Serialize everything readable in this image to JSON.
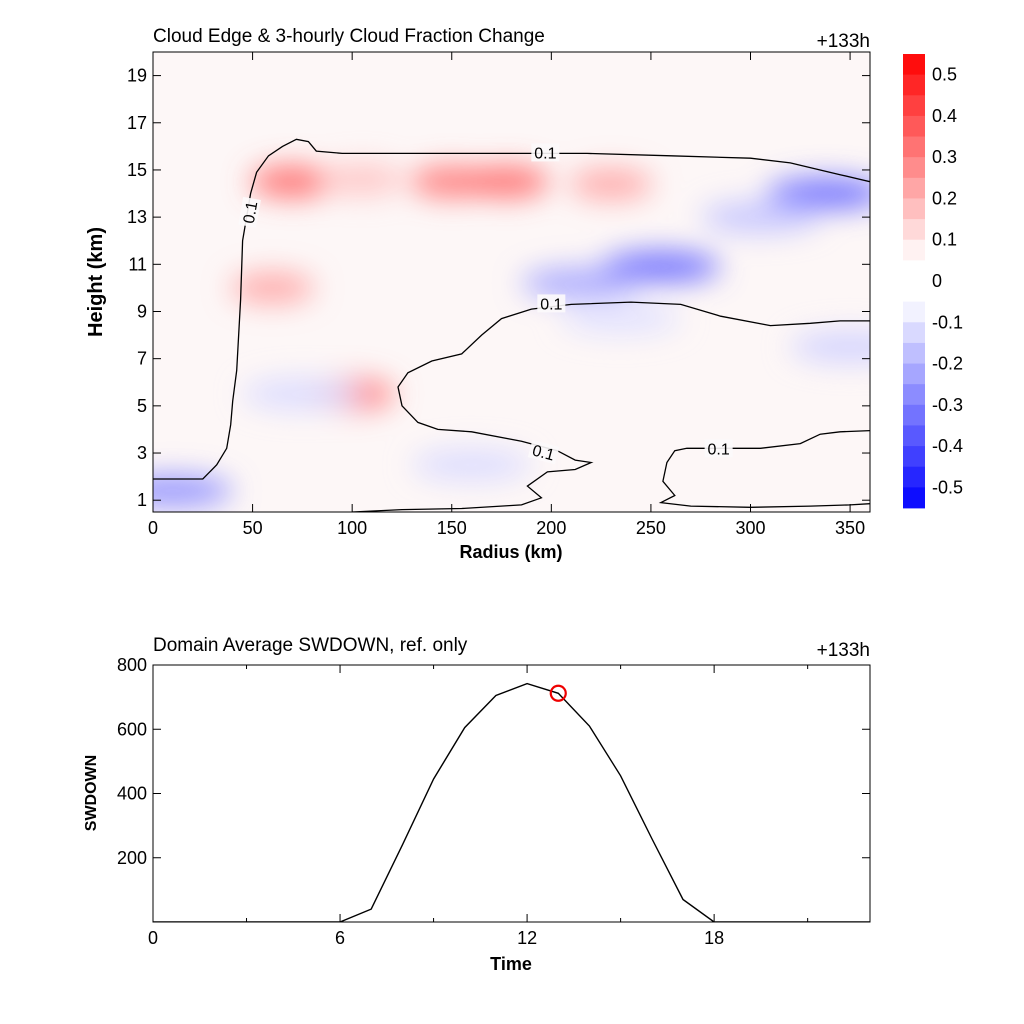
{
  "chart_data": [
    {
      "type": "heatmap",
      "title": "Cloud Edge & 3-hourly Cloud Fraction Change",
      "time_label": "+133h",
      "xlabel": "Radius (km)",
      "ylabel": "Height (km)",
      "xlim": [
        0,
        360
      ],
      "ylim": [
        0.5,
        20
      ],
      "x_ticks": [
        "0",
        "50",
        "100",
        "150",
        "200",
        "250",
        "300",
        "350"
      ],
      "x_tick_values": [
        0,
        50,
        100,
        150,
        200,
        250,
        300,
        350
      ],
      "y_ticks": [
        "1",
        "3",
        "5",
        "7",
        "9",
        "11",
        "13",
        "15",
        "17",
        "19"
      ],
      "y_tick_values": [
        1,
        3,
        5,
        7,
        9,
        11,
        13,
        15,
        17,
        19
      ],
      "colorbar": {
        "labels": [
          "0.5",
          "0.4",
          "0.3",
          "0.2",
          "0.1",
          "0",
          "-0.1",
          "-0.2",
          "-0.3",
          "-0.4",
          "-0.5"
        ],
        "range": [
          -0.55,
          0.55
        ],
        "positive_color": "#ff0000",
        "negative_color": "#0000ff"
      },
      "contour_level_label": "0.1",
      "anomalies": [
        {
          "x": 70,
          "y": 14.5,
          "value": 0.2
        },
        {
          "x": 105,
          "y": 14.6,
          "value": 0.08
        },
        {
          "x": 150,
          "y": 14.5,
          "value": 0.18
        },
        {
          "x": 178,
          "y": 14.5,
          "value": 0.2
        },
        {
          "x": 230,
          "y": 14.4,
          "value": 0.12
        },
        {
          "x": 60,
          "y": 10,
          "value": 0.12
        },
        {
          "x": 100,
          "y": 5.5,
          "value": 0.18
        },
        {
          "x": 255,
          "y": 10.9,
          "value": -0.2
        },
        {
          "x": 215,
          "y": 10.2,
          "value": -0.12
        },
        {
          "x": 338,
          "y": 14,
          "value": -0.2
        },
        {
          "x": 305,
          "y": 13,
          "value": -0.08
        },
        {
          "x": 10,
          "y": 1.4,
          "value": -0.15
        },
        {
          "x": 75,
          "y": 5.5,
          "value": -0.05
        },
        {
          "x": 160,
          "y": 2.5,
          "value": -0.05
        },
        {
          "x": 235,
          "y": 8.7,
          "value": -0.04
        },
        {
          "x": 350,
          "y": 7.5,
          "value": -0.06
        }
      ],
      "contour_0_1": [
        {
          "label_at": [
            250,
            13.3
          ],
          "points": [
            [
              0,
              1.9
            ],
            [
              25,
              1.9
            ],
            [
              32,
              2.5
            ],
            [
              37,
              3.2
            ],
            [
              39,
              4.2
            ],
            [
              40,
              5.2
            ],
            [
              42,
              6.5
            ],
            [
              44,
              9.5
            ],
            [
              45,
              12
            ],
            [
              49,
              14
            ],
            [
              52,
              14.9
            ],
            [
              58,
              15.6
            ],
            [
              65,
              16
            ],
            [
              72,
              16.3
            ],
            [
              78,
              16.2
            ],
            [
              82,
              15.8
            ],
            [
              95,
              15.7
            ],
            [
              130,
              15.7
            ],
            [
              170,
              15.7
            ],
            [
              218,
              15.7
            ],
            [
              260,
              15.6
            ],
            [
              300,
              15.5
            ],
            [
              320,
              15.3
            ],
            [
              345,
              14.8
            ],
            [
              360,
              14.5
            ]
          ]
        },
        {
          "points": [
            [
              360,
              8.6
            ],
            [
              345,
              8.6
            ],
            [
              330,
              8.5
            ],
            [
              310,
              8.4
            ],
            [
              285,
              8.8
            ],
            [
              265,
              9.3
            ],
            [
              240,
              9.4
            ],
            [
              210,
              9.3
            ],
            [
              190,
              9.1
            ],
            [
              175,
              8.7
            ],
            [
              165,
              8
            ],
            [
              155,
              7.2
            ],
            [
              140,
              6.9
            ],
            [
              128,
              6.4
            ],
            [
              123,
              5.8
            ],
            [
              125,
              5
            ],
            [
              133,
              4.3
            ],
            [
              143,
              4
            ],
            [
              160,
              3.9
            ],
            [
              185,
              3.5
            ],
            [
              203,
              3.1
            ],
            [
              212,
              2.7
            ],
            [
              220,
              2.6
            ],
            [
              212,
              2.3
            ],
            [
              198,
              2.2
            ],
            [
              188,
              1.6
            ],
            [
              195,
              1.1
            ],
            [
              185,
              0.8
            ],
            [
              155,
              0.65
            ],
            [
              125,
              0.6
            ],
            [
              100,
              0.5
            ]
          ]
        },
        {
          "points": [
            [
              360,
              3.95
            ],
            [
              345,
              3.9
            ],
            [
              335,
              3.8
            ],
            [
              325,
              3.4
            ],
            [
              305,
              3.2
            ],
            [
              290,
              3.2
            ],
            [
              268,
              3.2
            ],
            [
              262,
              3.1
            ],
            [
              258,
              2.6
            ],
            [
              256,
              1.8
            ],
            [
              262,
              1.2
            ],
            [
              255,
              0.9
            ],
            [
              270,
              0.75
            ],
            [
              300,
              0.7
            ],
            [
              330,
              0.75
            ],
            [
              350,
              0.8
            ],
            [
              360,
              0.85
            ]
          ]
        }
      ],
      "contour_labels": [
        {
          "text_key": "contour_level_label",
          "x": 197,
          "y": 15.7,
          "rotate": 0
        },
        {
          "text_key": "contour_level_label",
          "x": 49,
          "y": 13.2,
          "rotate": -80
        },
        {
          "text_key": "contour_level_label",
          "x": 200,
          "y": 9.3,
          "rotate": 0
        },
        {
          "text_key": "contour_level_label",
          "x": 196,
          "y": 3.0,
          "rotate": 15
        },
        {
          "text_key": "contour_level_label",
          "x": 284,
          "y": 3.15,
          "rotate": 0
        }
      ]
    },
    {
      "type": "line",
      "title": "Domain Average SWDOWN, ref. only",
      "time_label": "+133h",
      "xlabel": "Time",
      "ylabel": "SWDOWN",
      "xlim": [
        0,
        23
      ],
      "ylim": [
        0,
        800
      ],
      "x_ticks": [
        "0",
        "6",
        "12",
        "18"
      ],
      "x_tick_values": [
        0,
        6,
        12,
        18
      ],
      "x_minor_ticks": [
        3,
        9,
        15,
        21
      ],
      "y_ticks": [
        "200",
        "400",
        "600",
        "800"
      ],
      "y_tick_values": [
        200,
        400,
        600,
        800
      ],
      "x": [
        0,
        1,
        2,
        3,
        4,
        5,
        6,
        7,
        8,
        9,
        10,
        11,
        12,
        13,
        14,
        15,
        16,
        17,
        18,
        19,
        20,
        21,
        22,
        23
      ],
      "y": [
        0,
        0,
        0,
        0,
        0,
        0,
        0,
        40,
        240,
        445,
        605,
        705,
        742,
        712,
        610,
        455,
        260,
        70,
        0,
        0,
        0,
        0,
        0,
        0
      ],
      "line_color": "#000000",
      "marker": {
        "x": 13,
        "y": 712,
        "color": "#ee0000",
        "shape": "circle"
      }
    }
  ]
}
